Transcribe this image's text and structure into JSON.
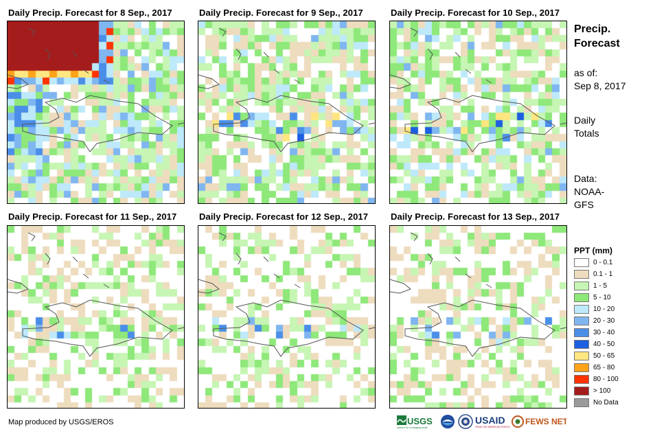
{
  "panels": [
    {
      "title": "Daily Precip. Forecast for 8 Sep., 2017",
      "seed": 11,
      "intensity": "high"
    },
    {
      "title": "Daily Precip. Forecast for 9 Sep., 2017",
      "seed": 23,
      "intensity": "moderate"
    },
    {
      "title": "Daily Precip. Forecast for 10 Sep., 2017",
      "seed": 37,
      "intensity": "moderate"
    },
    {
      "title": "Daily Precip. Forecast for 11 Sep., 2017",
      "seed": 41,
      "intensity": "low"
    },
    {
      "title": "Daily Precip. Forecast for 12 Sep., 2017",
      "seed": 53,
      "intensity": "low"
    },
    {
      "title": "Daily Precip. Forecast for 13 Sep., 2017",
      "seed": 67,
      "intensity": "low"
    }
  ],
  "side": {
    "title_line1": "Precip.",
    "title_line2": "Forecast",
    "asof_line1": "as of:",
    "asof_line2": "Sep 8, 2017",
    "totals_line1": "Daily",
    "totals_line2": "Totals",
    "data_line1": "Data:",
    "data_line2": "NOAA-",
    "data_line3": "GFS"
  },
  "legend": {
    "title": "PPT (mm)",
    "items": [
      {
        "label": "0 - 0.1",
        "color": "#ffffff"
      },
      {
        "label": "0.1 - 1",
        "color": "#eedcbe"
      },
      {
        "label": "1 - 5",
        "color": "#c6f5b4"
      },
      {
        "label": "5 - 10",
        "color": "#8ee87a"
      },
      {
        "label": "10 - 20",
        "color": "#bde9fa"
      },
      {
        "label": "20 - 30",
        "color": "#7fb6f0"
      },
      {
        "label": "30 - 40",
        "color": "#4a8ee8"
      },
      {
        "label": "40 - 50",
        "color": "#1d5fe0"
      },
      {
        "label": "50 - 65",
        "color": "#ffe680"
      },
      {
        "label": "65 - 80",
        "color": "#ffa31a"
      },
      {
        "label": "80 - 100",
        "color": "#ff3300"
      },
      {
        "label": "> 100",
        "color": "#a51c1c"
      },
      {
        "label": "No Data",
        "color": "#9a9a9a"
      }
    ]
  },
  "footer": {
    "credit": "Map produced by USGS/EROS",
    "logos": {
      "usgs": "USGS",
      "usgs_tagline": "science for a changing world",
      "usaid": "USAID",
      "usaid_tagline": "FROM THE AMERICAN PEOPLE",
      "fewsnet": "FEWS NET"
    }
  }
}
